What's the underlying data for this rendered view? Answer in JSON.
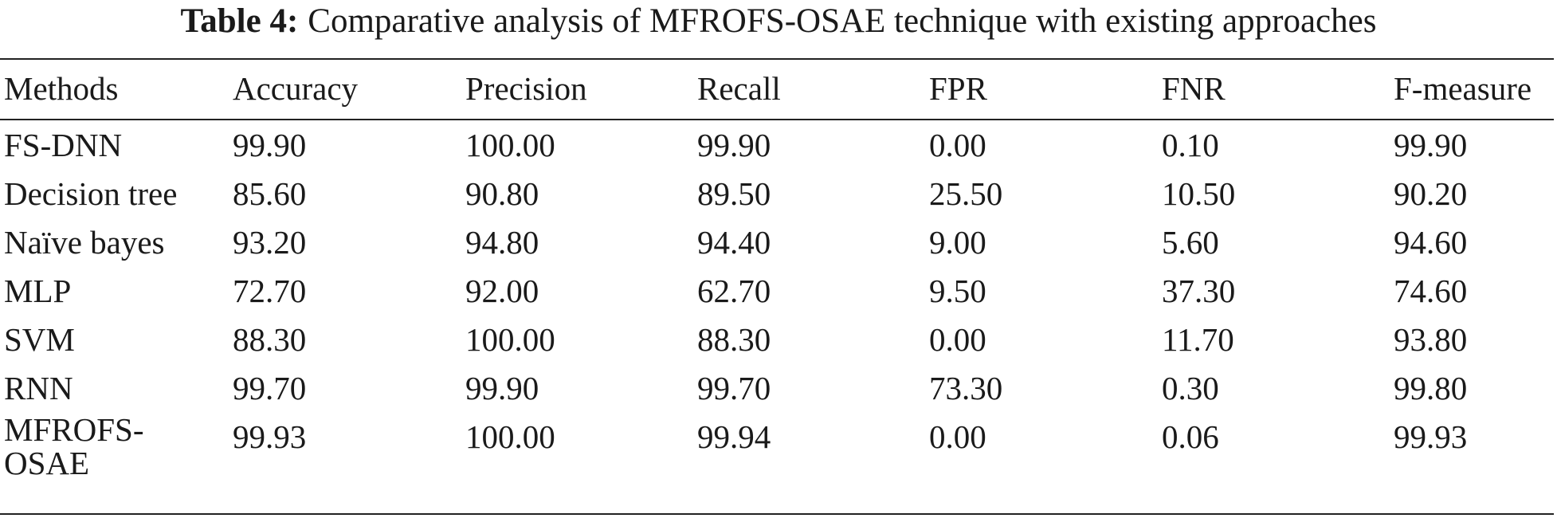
{
  "caption": {
    "label": "Table 4:",
    "text": "Comparative analysis of MFROFS-OSAE technique with existing approaches"
  },
  "table": {
    "headers": [
      "Methods",
      "Accuracy",
      "Precision",
      "Recall",
      "FPR",
      "FNR",
      "F-measure"
    ],
    "rows": [
      [
        "FS-DNN",
        "99.90",
        "100.00",
        "99.90",
        "0.00",
        "0.10",
        "99.90"
      ],
      [
        "Decision tree",
        "85.60",
        "90.80",
        "89.50",
        "25.50",
        "10.50",
        "90.20"
      ],
      [
        "Naïve bayes",
        "93.20",
        "94.80",
        "94.40",
        "9.00",
        "5.60",
        "94.60"
      ],
      [
        "MLP",
        "72.70",
        "92.00",
        "62.70",
        "9.50",
        "37.30",
        "74.60"
      ],
      [
        "SVM",
        "88.30",
        "100.00",
        "88.30",
        "0.00",
        "11.70",
        "93.80"
      ],
      [
        "RNN",
        "99.70",
        "99.90",
        "99.70",
        "73.30",
        "0.30",
        "99.80"
      ],
      [
        "MFROFS-OSAE",
        "99.93",
        "100.00",
        "99.94",
        "0.00",
        "0.06",
        "99.93"
      ]
    ],
    "last_method_lines": [
      "MFROFS-",
      "OSAE"
    ]
  }
}
